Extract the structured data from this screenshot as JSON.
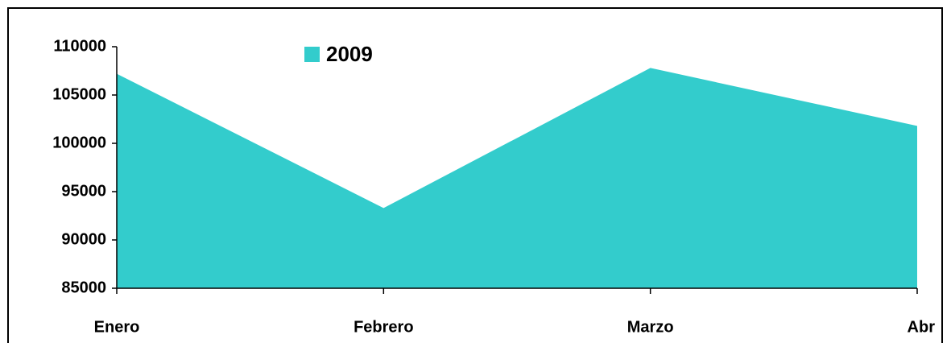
{
  "chart_data": {
    "type": "area",
    "categories": [
      "Enero",
      "Febrero",
      "Marzo",
      "Abr"
    ],
    "series": [
      {
        "name": "2009",
        "color": "#33cccc",
        "values": [
          107200,
          93300,
          107800,
          101800
        ]
      }
    ],
    "ylim": [
      85000,
      110000
    ],
    "yticks": [
      85000,
      90000,
      95000,
      100000,
      105000,
      110000
    ],
    "legend": "top"
  }
}
